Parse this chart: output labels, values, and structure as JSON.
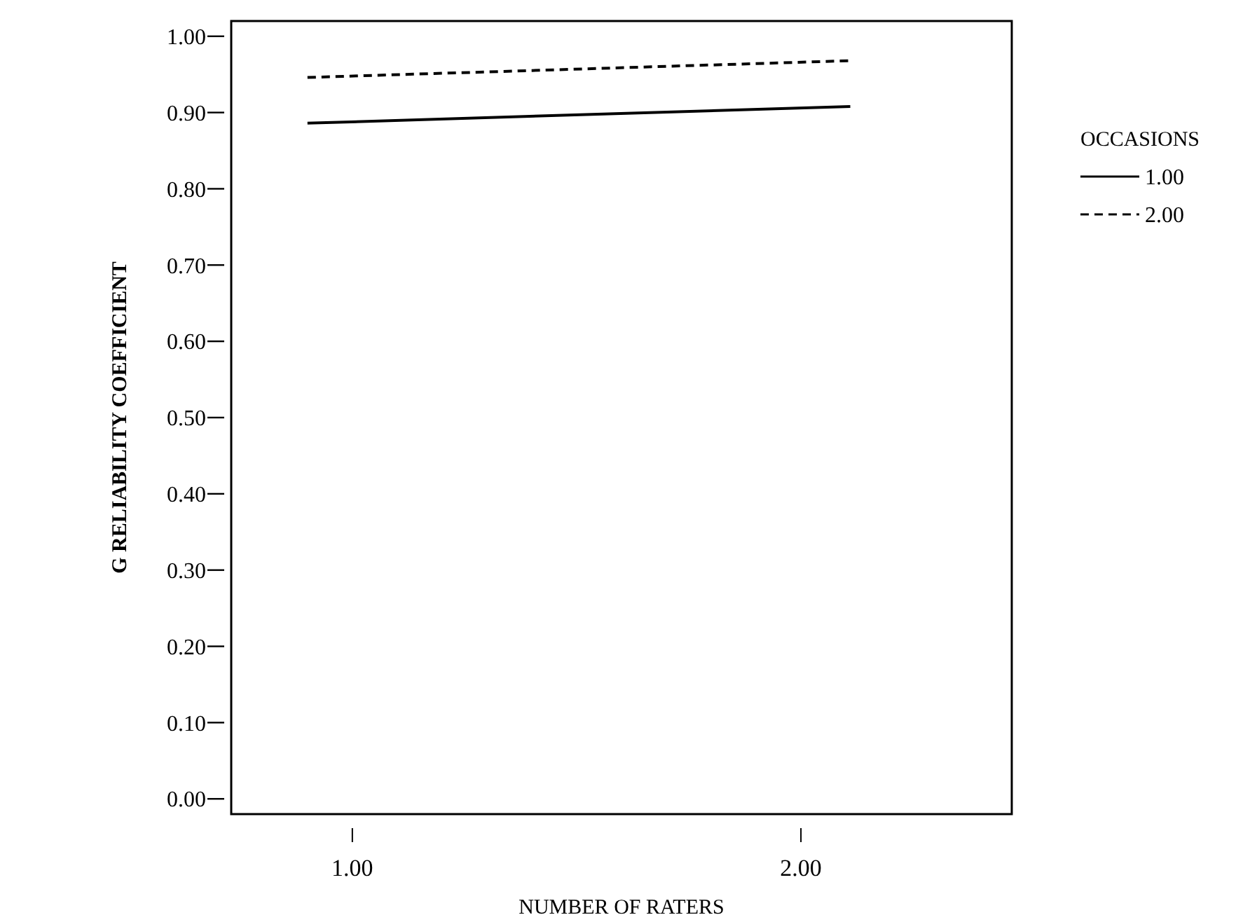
{
  "chart_data": {
    "type": "line",
    "xlabel": "NUMBER OF RATERS",
    "ylabel": "G RELIABILITY COEFFICIENT",
    "legend_title": "OCCASIONS",
    "legend": "right",
    "xlim": [
      0.73,
      2.47
    ],
    "xticks": [
      {
        "value": 1,
        "label": "1.00"
      },
      {
        "value": 2,
        "label": "2.00"
      }
    ],
    "ylim": [
      -0.02,
      1.02
    ],
    "yticks": [
      {
        "value": 0,
        "label": "0.00"
      },
      {
        "value": 0.1,
        "label": "0.10"
      },
      {
        "value": 0.2,
        "label": "0.20"
      },
      {
        "value": 0.3,
        "label": "0.30"
      },
      {
        "value": 0.4,
        "label": "0.40"
      },
      {
        "value": 0.5,
        "label": "0.50"
      },
      {
        "value": 0.6,
        "label": "0.60"
      },
      {
        "value": 0.7,
        "label": "0.70"
      },
      {
        "value": 0.8,
        "label": "0.80"
      },
      {
        "value": 0.9,
        "label": "0.90"
      },
      {
        "value": 1,
        "label": "1.00"
      }
    ],
    "x": [
      0.9,
      2.11
    ],
    "series": [
      {
        "name": "1.00",
        "color": "#000000",
        "line_style": "solid",
        "values": [
          0.886,
          0.908
        ]
      },
      {
        "name": "2.00",
        "color": "#000000",
        "line_style": "dashed",
        "values": [
          0.946,
          0.968
        ]
      }
    ]
  }
}
